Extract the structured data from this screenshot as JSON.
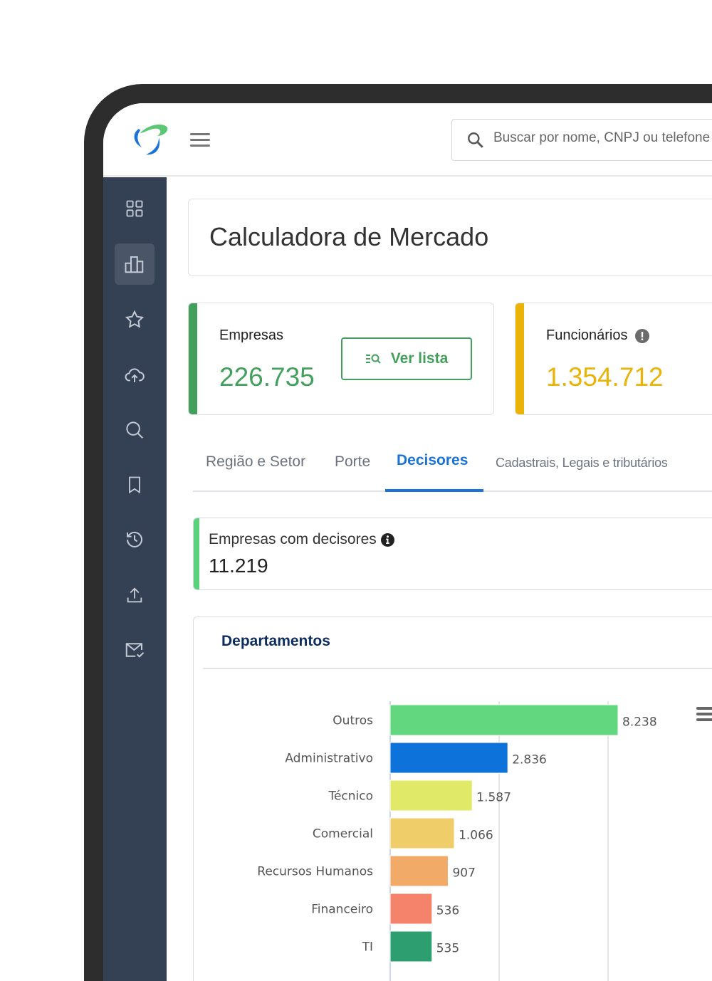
{
  "header": {
    "search_placeholder": "Buscar por nome, CNPJ ou telefone"
  },
  "sidebar": {
    "items": [
      {
        "icon": "grid-icon"
      },
      {
        "icon": "bar-chart-icon",
        "active": true
      },
      {
        "icon": "star-icon"
      },
      {
        "icon": "cloud-upload-icon"
      },
      {
        "icon": "search-icon"
      },
      {
        "icon": "bookmark-icon"
      },
      {
        "icon": "history-icon"
      },
      {
        "icon": "upload-icon"
      },
      {
        "icon": "mail-check-icon"
      }
    ]
  },
  "page": {
    "title": "Calculadora de Mercado"
  },
  "stats": {
    "empresas": {
      "label": "Empresas",
      "value": "226.735",
      "button": "Ver lista",
      "color": "#43a05c"
    },
    "funcionarios": {
      "label": "Funcionários",
      "value": "1.354.712",
      "color": "#eab308"
    }
  },
  "tabs": [
    "Região e Setor",
    "Porte",
    "Decisores",
    "Cadastrais, Legais e tributários"
  ],
  "active_tab": "Decisores",
  "decisores": {
    "label": "Empresas com decisores",
    "value": "11.219"
  },
  "departamentos": {
    "title": "Departamentos"
  },
  "chart_data": {
    "type": "bar",
    "orientation": "horizontal",
    "categories": [
      "Outros",
      "Administrativo",
      "Técnico",
      "Comercial",
      "Recursos Humanos",
      "Financeiro",
      "TI"
    ],
    "values": [
      8238,
      2836,
      1587,
      1066,
      907,
      536,
      535
    ],
    "value_labels": [
      "8.238",
      "2.836",
      "1.587",
      "1.066",
      "907",
      "536",
      "535"
    ],
    "colors": [
      "#62d77f",
      "#0d72d9",
      "#e1ea68",
      "#efce6a",
      "#f2aa69",
      "#f5836b",
      "#2c9e70"
    ],
    "grid": true
  }
}
